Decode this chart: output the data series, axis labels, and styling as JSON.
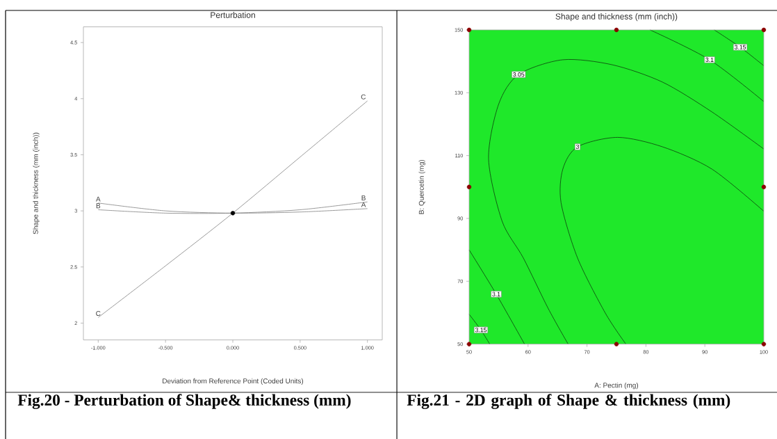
{
  "chart_data": [
    {
      "type": "line",
      "title": "Perturbation",
      "xlabel": "Deviation from Reference Point (Coded Units)",
      "ylabel": "Shape and thickness (mm (inch))",
      "x": [
        -1,
        -0.5,
        0,
        0.5,
        1
      ],
      "xlim": [
        -1.11,
        1.11
      ],
      "ylim": [
        1.85,
        4.64
      ],
      "xticks": [
        {
          "value": -1,
          "label": "-1.000"
        },
        {
          "value": -0.5,
          "label": "-0.500"
        },
        {
          "value": 0,
          "label": "0.000"
        },
        {
          "value": 0.5,
          "label": "0.500"
        },
        {
          "value": 1,
          "label": "1.000"
        }
      ],
      "yticks": [
        2,
        2.5,
        3,
        3.5,
        4,
        4.5
      ],
      "series": [
        {
          "name": "A",
          "color": "#808080",
          "values": [
            3.07,
            3.0,
            2.98,
            2.99,
            3.02
          ]
        },
        {
          "name": "B",
          "color": "#808080",
          "values": [
            3.01,
            2.98,
            2.98,
            3.01,
            3.08
          ]
        },
        {
          "name": "C",
          "color": "#808080",
          "values": [
            2.05,
            2.51,
            2.98,
            3.48,
            3.98
          ]
        },
        {
          "type": "scatter",
          "color": "#000000",
          "x": [
            0
          ],
          "values": [
            2.98
          ]
        }
      ],
      "annotations": [
        "Fig.20 - Perturbation of Shape& thickness (mm)"
      ]
    },
    {
      "type": "line",
      "title": "Shape and thickness (mm (inch))",
      "xlabel": "A: Pectin (mg)",
      "ylabel": "B: Quercetin (mg)",
      "xlim": [
        50,
        100
      ],
      "ylim": [
        50,
        150
      ],
      "xticks": [
        50,
        60,
        70,
        80,
        90,
        100
      ],
      "yticks": [
        50,
        70,
        90,
        110,
        130,
        150
      ],
      "bands": [
        {
          "axis": "x",
          "from": 50,
          "to": 100,
          "color": "#1fe82a"
        }
      ],
      "series": [
        {
          "name": "3",
          "color": "#0d3d0d",
          "x": [
            100,
            91.2,
            82.8,
            75.2,
            68.4,
            65.9,
            65.6,
            68.4,
            73.1,
            76.6
          ],
          "values": [
            92.3,
            105.7,
            112.8,
            115.8,
            112.8,
            105.7,
            95,
            77.4,
            59.9,
            50
          ]
        },
        {
          "name": "3.05",
          "color": "#0d3d0d",
          "x": [
            100,
            91.2,
            82.8,
            74.3,
            65.9,
            58.4,
            55,
            53.3,
            55.6,
            59.2,
            63.4,
            66.8
          ],
          "values": [
            112.1,
            123.9,
            133.4,
            138.9,
            140.5,
            135.8,
            126.3,
            108.9,
            89.1,
            77.4,
            61.4,
            50
          ]
        },
        {
          "name": "3.1",
          "color": "#0d3d0d",
          "x": [
            80.7,
            90.8,
            100
          ],
          "values": [
            150,
            140.5,
            127.2
          ]
        },
        {
          "name": "3.15",
          "color": "#0d3d0d",
          "x": [
            91.6,
            96,
            100
          ],
          "values": [
            150,
            144.5,
            138.6
          ]
        },
        {
          "name": "3.1",
          "color": "#0d3d0d",
          "x": [
            50,
            54.6,
            59.4
          ],
          "values": [
            80,
            65.9,
            50
          ]
        },
        {
          "name": "3.15",
          "color": "#0d3d0d",
          "x": [
            50,
            52,
            53.5
          ],
          "values": [
            59.5,
            54.5,
            50
          ]
        },
        {
          "type": "scatter",
          "color": "#8b0000",
          "x": [
            50,
            75,
            100,
            50,
            100,
            50,
            75,
            100
          ],
          "values": [
            50,
            50,
            50,
            100,
            100,
            150,
            150,
            150
          ]
        }
      ],
      "annotations": [
        "Fig.21 - 2D graph of Shape & thickness (mm)"
      ]
    }
  ]
}
